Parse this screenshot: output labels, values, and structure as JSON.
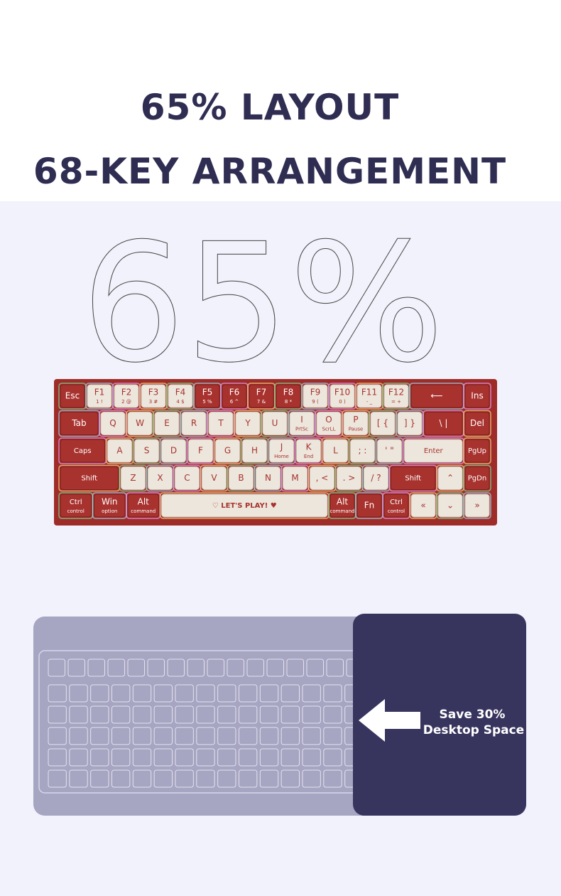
{
  "header": {
    "title_line1": "65% LAYOUT",
    "title_line2": "68-KEY ARRANGEMENT"
  },
  "watermark": "65%",
  "keyboard": {
    "rows": [
      [
        {
          "label": "Esc",
          "color": "#a8322e"
        },
        {
          "label": "F1",
          "sub": "1 !"
        },
        {
          "label": "F2",
          "sub": "2 @"
        },
        {
          "label": "F3",
          "sub": "3 #"
        },
        {
          "label": "F4",
          "sub": "4 $"
        },
        {
          "label": "F5",
          "sub": "5 %",
          "color": "#a8322e"
        },
        {
          "label": "F6",
          "sub": "6 ^",
          "color": "#a8322e"
        },
        {
          "label": "F7",
          "sub": "7 &",
          "color": "#a8322e"
        },
        {
          "label": "F8",
          "sub": "8 *",
          "color": "#a8322e"
        },
        {
          "label": "F9",
          "sub": "9 ("
        },
        {
          "label": "F10",
          "sub": "0 )"
        },
        {
          "label": "F11",
          "sub": "- _"
        },
        {
          "label": "F12",
          "sub": "= +"
        },
        {
          "label": "⟵",
          "color": "#a8322e"
        },
        {
          "label": "Ins",
          "color": "#a8322e"
        }
      ],
      [
        {
          "label": "Tab",
          "color": "#a8322e"
        },
        {
          "label": "Q"
        },
        {
          "label": "W"
        },
        {
          "label": "E"
        },
        {
          "label": "R"
        },
        {
          "label": "T"
        },
        {
          "label": "Y"
        },
        {
          "label": "U"
        },
        {
          "label": "I",
          "sub": "PrtSc"
        },
        {
          "label": "O",
          "sub": "ScrLL"
        },
        {
          "label": "P",
          "sub": "Pause"
        },
        {
          "label": "[ {"
        },
        {
          "label": "] }"
        },
        {
          "label": "\\ |",
          "color": "#a8322e"
        },
        {
          "label": "Del",
          "color": "#a8322e"
        }
      ],
      [
        {
          "label": "Caps",
          "color": "#a8322e"
        },
        {
          "label": "A"
        },
        {
          "label": "S"
        },
        {
          "label": "D"
        },
        {
          "label": "F"
        },
        {
          "label": "G"
        },
        {
          "label": "H"
        },
        {
          "label": "J",
          "sub": "Home"
        },
        {
          "label": "K",
          "sub": "End"
        },
        {
          "label": "L"
        },
        {
          "label": "; :"
        },
        {
          "label": "' \""
        },
        {
          "label": "Enter"
        },
        {
          "label": "PgUp",
          "color": "#a8322e"
        }
      ],
      [
        {
          "label": "Shift",
          "color": "#a8322e"
        },
        {
          "label": "Z"
        },
        {
          "label": "X"
        },
        {
          "label": "C"
        },
        {
          "label": "V"
        },
        {
          "label": "B"
        },
        {
          "label": "N"
        },
        {
          "label": "M"
        },
        {
          "label": ", <"
        },
        {
          "label": ". >"
        },
        {
          "label": "/ ?"
        },
        {
          "label": "Shift",
          "color": "#a8322e"
        },
        {
          "label": "⌃"
        },
        {
          "label": "PgDn",
          "color": "#a8322e"
        }
      ],
      [
        {
          "label": "Ctrl",
          "sub": "control",
          "color": "#a8322e"
        },
        {
          "label": "Win",
          "sub": "option",
          "color": "#a8322e"
        },
        {
          "label": "Alt",
          "sub": "command",
          "color": "#a8322e"
        },
        {
          "label": "♡ LET'S PLAY! ♥"
        },
        {
          "label": "Alt",
          "sub": "command",
          "color": "#a8322e"
        },
        {
          "label": "Fn",
          "color": "#a8322e"
        },
        {
          "label": "Ctrl",
          "sub": "control",
          "color": "#a8322e"
        },
        {
          "label": "«"
        },
        {
          "label": "⌄"
        },
        {
          "label": "»"
        }
      ]
    ]
  },
  "comparison": {
    "callout": [
      "Save 30%",
      "Desktop Space"
    ]
  }
}
